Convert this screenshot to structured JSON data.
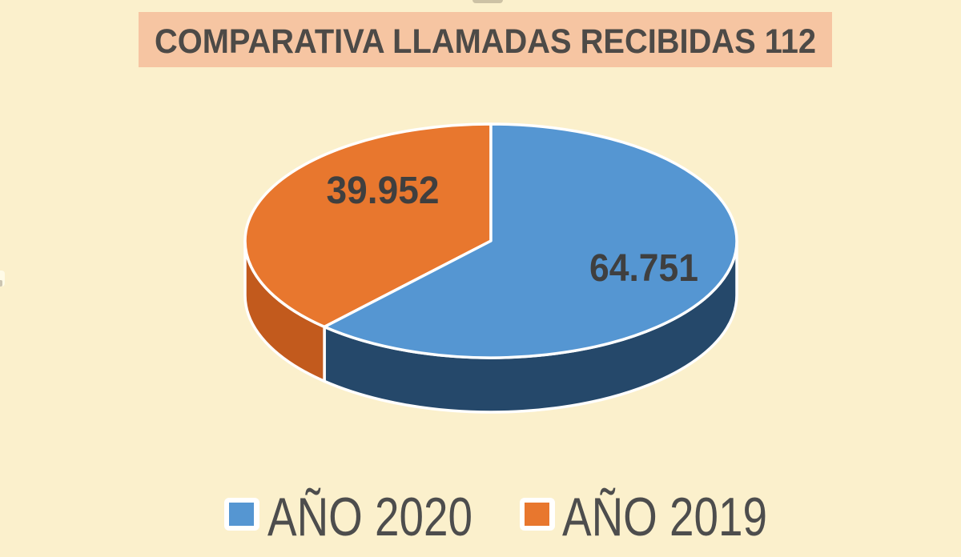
{
  "page": {
    "background_color": "#FBF0CC"
  },
  "title": {
    "text": "COMPARATIVA LLAMADAS RECIBIDAS 112",
    "banner_color": "#F6C5A2",
    "text_color": "#4D4A47"
  },
  "chart_data": {
    "type": "pie",
    "title": "COMPARATIVA LLAMADAS RECIBIDAS 112",
    "effect": "3d",
    "start_angle_deg": -90,
    "direction": "clockwise",
    "legend_position": "bottom",
    "data_labels": "inside",
    "series": [
      {
        "name": "AÑO 2020",
        "value": 64751,
        "data_label": "64.751",
        "color": "#5596D2",
        "side_color": "#25486A",
        "cut_face_color": "#1D3B58"
      },
      {
        "name": "AÑO 2019",
        "value": 39952,
        "data_label": "39.952",
        "color": "#E8772E",
        "side_color": "#C25A1D"
      }
    ],
    "data_label_color": "#3F3F3F"
  },
  "legend": {
    "text_color": "#4D4D4D"
  }
}
